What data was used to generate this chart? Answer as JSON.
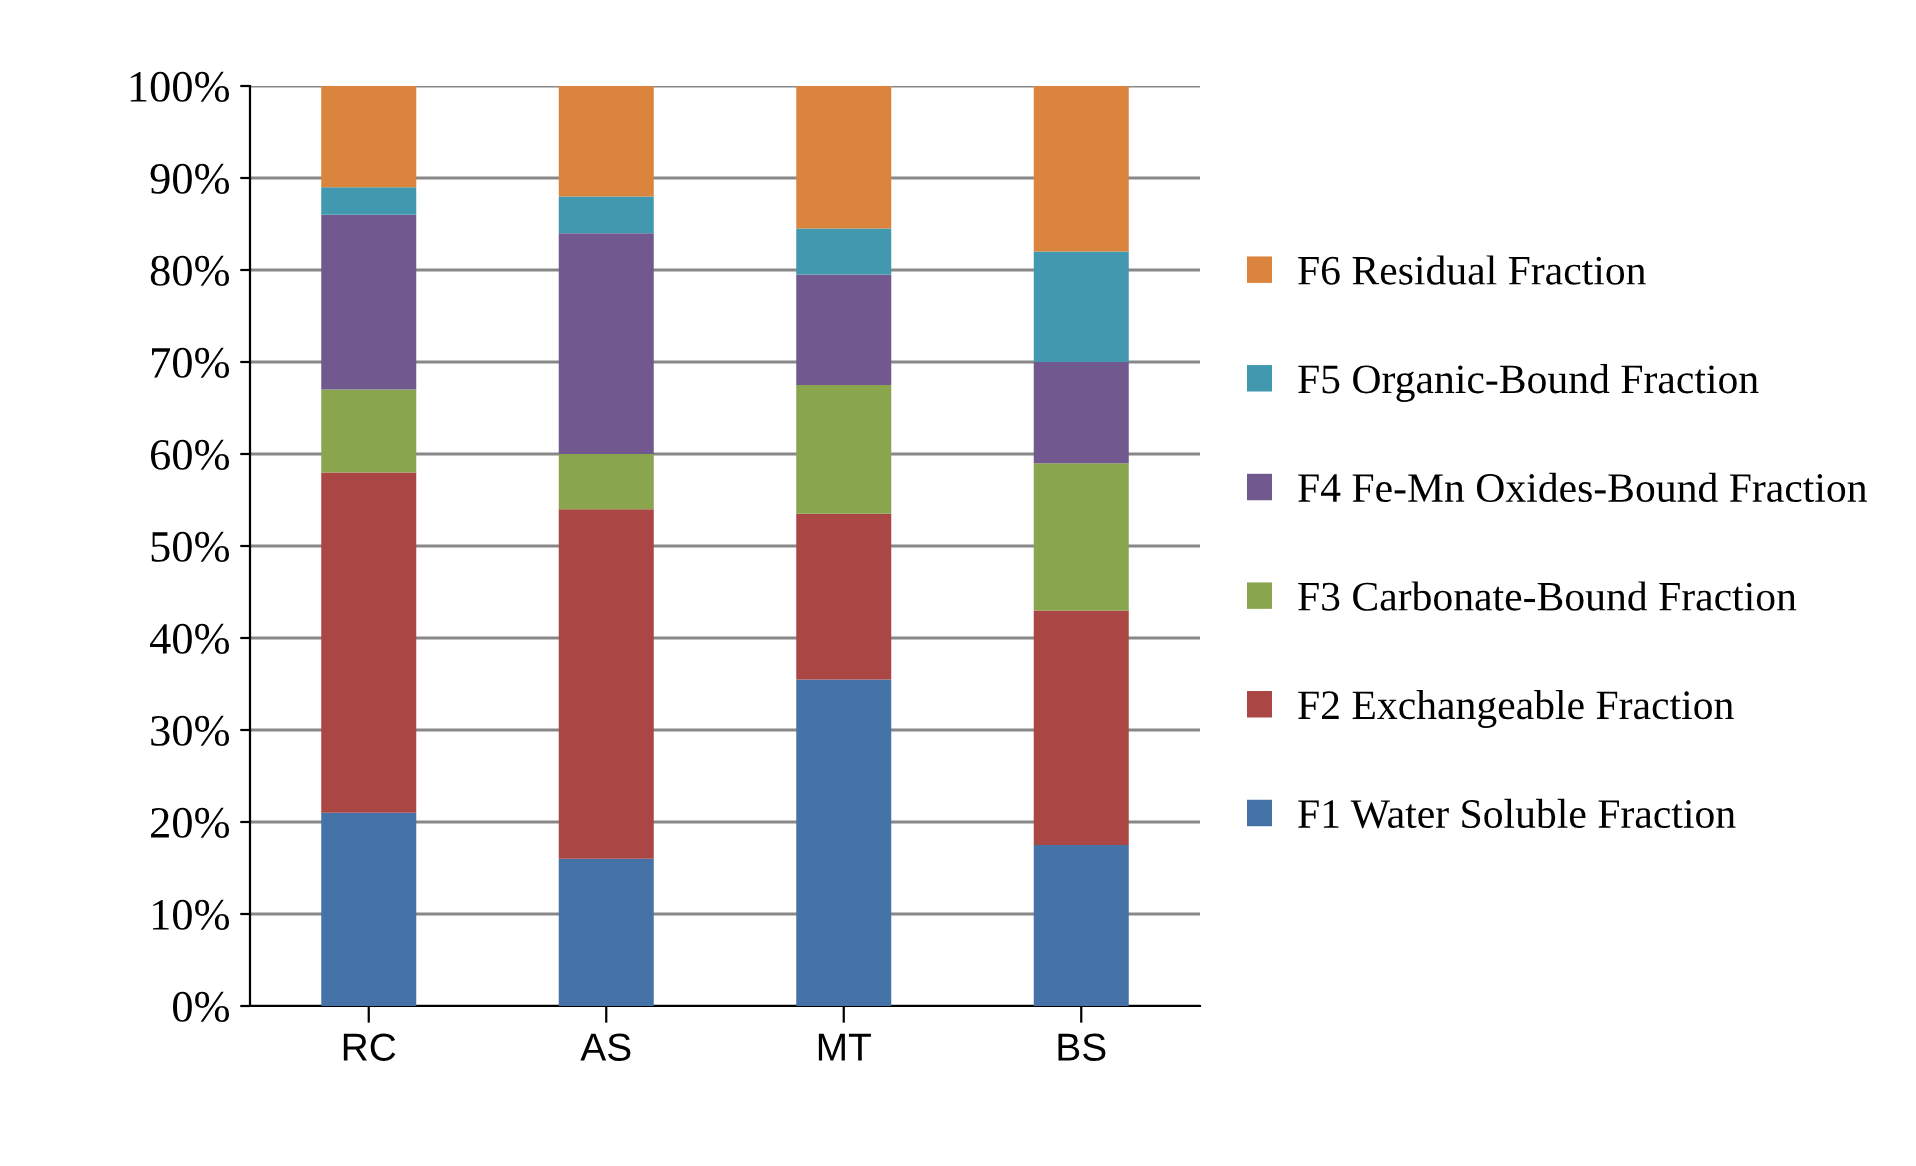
{
  "chart_data": {
    "type": "bar",
    "stacked": true,
    "categories": [
      "RC",
      "AS",
      "MT",
      "BS"
    ],
    "series": [
      {
        "name": "F1 Water Soluble Fraction",
        "color": "#4572a7",
        "values": [
          21,
          16,
          35.5,
          17.5
        ]
      },
      {
        "name": "F2 Exchangeable Fraction",
        "color": "#aa4643",
        "values": [
          37,
          38,
          18,
          25.5
        ]
      },
      {
        "name": "F3 Carbonate-Bound Fraction",
        "color": "#89a54e",
        "values": [
          9,
          6,
          14,
          16
        ]
      },
      {
        "name": "F4 Fe-Mn Oxides-Bound Fraction",
        "color": "#71588f",
        "values": [
          19,
          24,
          12,
          11
        ]
      },
      {
        "name": "F5 Organic-Bound Fraction",
        "color": "#4198af",
        "values": [
          3,
          4,
          5,
          12
        ]
      },
      {
        "name": "F6 Residual Fraction",
        "color": "#db843d",
        "values": [
          11,
          12,
          15.5,
          18
        ]
      }
    ],
    "ylim": [
      0,
      100
    ],
    "yticks": [
      {
        "value": 0,
        "label": "0%"
      },
      {
        "value": 10,
        "label": "10%"
      },
      {
        "value": 20,
        "label": "20%"
      },
      {
        "value": 30,
        "label": "30%"
      },
      {
        "value": 40,
        "label": "40%"
      },
      {
        "value": 50,
        "label": "50%"
      },
      {
        "value": 60,
        "label": "60%"
      },
      {
        "value": 70,
        "label": "70%"
      },
      {
        "value": 80,
        "label": "80%"
      },
      {
        "value": 90,
        "label": "90%"
      },
      {
        "value": 100,
        "label": "100%"
      }
    ],
    "grid": "y",
    "legend": "right"
  }
}
